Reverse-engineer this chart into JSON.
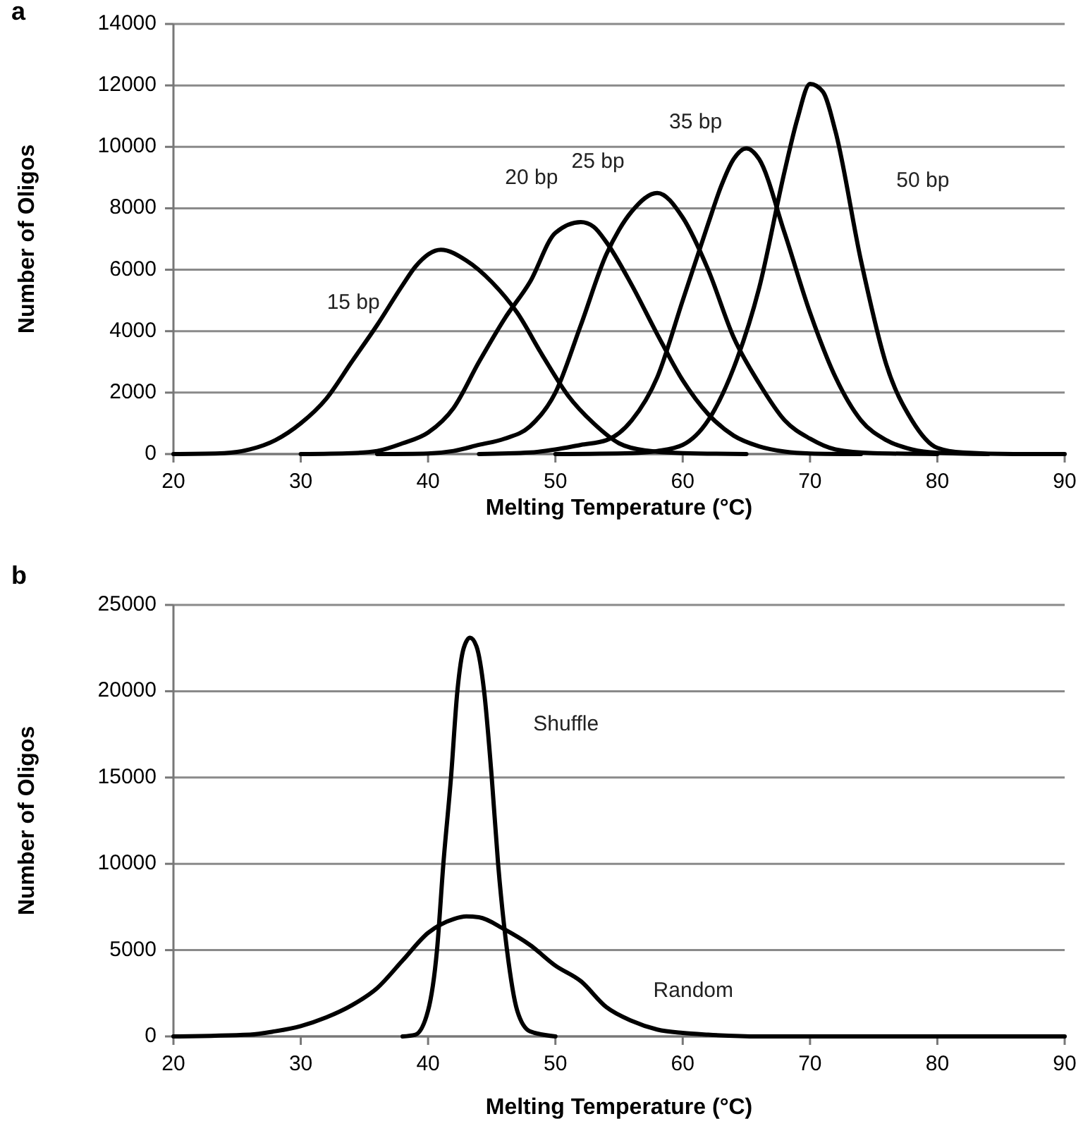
{
  "chart_data": [
    {
      "type": "line",
      "title": "a",
      "xlabel": "Melting Temperature (°C)",
      "ylabel": "Number of Oligos",
      "xlim": [
        20,
        90
      ],
      "xticks": [
        20,
        30,
        40,
        50,
        60,
        70,
        80,
        90
      ],
      "ylim": [
        0,
        14000
      ],
      "yticks": [
        0,
        2000,
        4000,
        6000,
        8000,
        10000,
        12000,
        14000
      ],
      "grid": "y",
      "marker": "none",
      "line_style": "solid",
      "series": [
        {
          "name": "15 bp",
          "color": "#000000",
          "x": [
            20,
            24,
            26,
            28,
            30,
            32,
            34,
            36,
            38,
            39,
            41,
            43,
            45,
            47,
            49,
            51,
            53,
            55,
            57,
            60,
            65
          ],
          "values": [
            0,
            30,
            150,
            450,
            1000,
            1800,
            3000,
            4200,
            5500,
            6100,
            6650,
            6300,
            5600,
            4600,
            3200,
            1900,
            1000,
            350,
            120,
            30,
            0
          ]
        },
        {
          "name": "20 bp",
          "color": "#000000",
          "x": [
            30,
            34,
            36,
            38,
            40,
            42,
            44,
            46,
            48,
            50,
            52,
            53,
            54,
            56,
            58,
            60,
            62,
            64,
            66,
            68,
            70,
            74
          ],
          "values": [
            0,
            30,
            100,
            350,
            700,
            1500,
            3000,
            4400,
            5600,
            7200,
            7550,
            7400,
            6900,
            5500,
            3900,
            2400,
            1300,
            600,
            250,
            80,
            20,
            0
          ]
        },
        {
          "name": "25 bp",
          "color": "#000000",
          "x": [
            36,
            40,
            42,
            44,
            46,
            48,
            50,
            52,
            54,
            55,
            56,
            58,
            60,
            62,
            64,
            66,
            68,
            70,
            72,
            75,
            80
          ],
          "values": [
            0,
            20,
            100,
            300,
            500,
            900,
            2000,
            4200,
            6500,
            7300,
            7900,
            8500,
            7700,
            6000,
            3800,
            2300,
            1100,
            500,
            150,
            30,
            0
          ]
        },
        {
          "name": "35 bp",
          "color": "#000000",
          "x": [
            44,
            48,
            50,
            52,
            54,
            56,
            58,
            60,
            62,
            63,
            64,
            65,
            66,
            68,
            70,
            72,
            74,
            76,
            78,
            80,
            84
          ],
          "values": [
            0,
            50,
            150,
            300,
            450,
            1100,
            2500,
            5000,
            7500,
            8700,
            9600,
            9950,
            9600,
            7200,
            4600,
            2500,
            1100,
            450,
            150,
            40,
            0
          ]
        },
        {
          "name": "50 bp",
          "color": "#000000",
          "x": [
            50,
            56,
            58,
            60,
            62,
            64,
            66,
            68,
            69,
            70,
            71,
            72,
            74,
            76,
            78,
            80,
            82,
            86,
            90
          ],
          "values": [
            0,
            30,
            100,
            300,
            1100,
            2800,
            5400,
            9200,
            10900,
            12050,
            11800,
            10500,
            6300,
            2900,
            1100,
            200,
            50,
            0,
            0
          ]
        }
      ]
    },
    {
      "type": "line",
      "title": "b",
      "xlabel": "Melting Temperature (°C)",
      "ylabel": "Number of Oligos",
      "xlim": [
        20,
        90
      ],
      "xticks": [
        20,
        30,
        40,
        50,
        60,
        70,
        80,
        90
      ],
      "ylim": [
        0,
        25000
      ],
      "yticks": [
        0,
        5000,
        10000,
        15000,
        20000,
        25000
      ],
      "grid": "y",
      "marker": "none",
      "line_style": "solid",
      "series": [
        {
          "name": "Shuffle",
          "color": "#000000",
          "x": [
            38,
            39,
            40,
            40.7,
            41.2,
            41.8,
            42.3,
            42.8,
            43.3,
            43.8,
            44.4,
            45,
            45.5,
            46.2,
            47,
            48,
            50
          ],
          "values": [
            0,
            100,
            1500,
            5000,
            10000,
            15000,
            20000,
            22500,
            23100,
            22600,
            20000,
            15000,
            10000,
            5000,
            1500,
            300,
            0
          ]
        },
        {
          "name": "Random",
          "color": "#000000",
          "x": [
            20,
            26,
            28,
            30,
            32,
            34,
            36,
            38,
            40,
            42,
            43,
            44,
            46,
            48,
            50,
            52,
            54,
            56,
            58,
            60,
            62,
            66,
            90
          ],
          "values": [
            0,
            100,
            300,
            600,
            1100,
            1800,
            2800,
            4400,
            6000,
            6800,
            6950,
            6900,
            6200,
            5300,
            4100,
            3200,
            1700,
            900,
            400,
            200,
            100,
            0,
            0
          ]
        }
      ]
    }
  ]
}
